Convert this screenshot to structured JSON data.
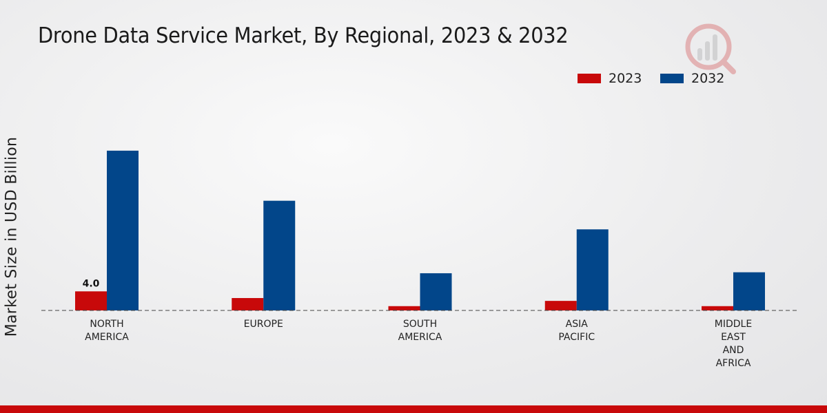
{
  "chart_data": {
    "type": "bar",
    "title": "Drone Data Service Market, By Regional, 2023 & 2032",
    "xlabel": "",
    "ylabel": "Market Size in USD Billion",
    "categories": [
      "NORTH\nAMERICA",
      "EUROPE",
      "SOUTH\nAMERICA",
      "ASIA\nPACIFIC",
      "MIDDLE\nEAST\nAND\nAFRICA"
    ],
    "series": [
      {
        "name": "2023",
        "color": "#c8090a",
        "values": [
          4.0,
          2.6,
          0.9,
          2.0,
          0.9
        ]
      },
      {
        "name": "2032",
        "color": "#02468a",
        "values": [
          33.5,
          23.0,
          7.8,
          17.0,
          8.0
        ]
      }
    ],
    "data_labels": [
      {
        "series": "2023",
        "category_index": 0,
        "text": "4.0"
      }
    ],
    "ylim": [
      0,
      42
    ],
    "grid": false,
    "legend_position": "top-right"
  }
}
